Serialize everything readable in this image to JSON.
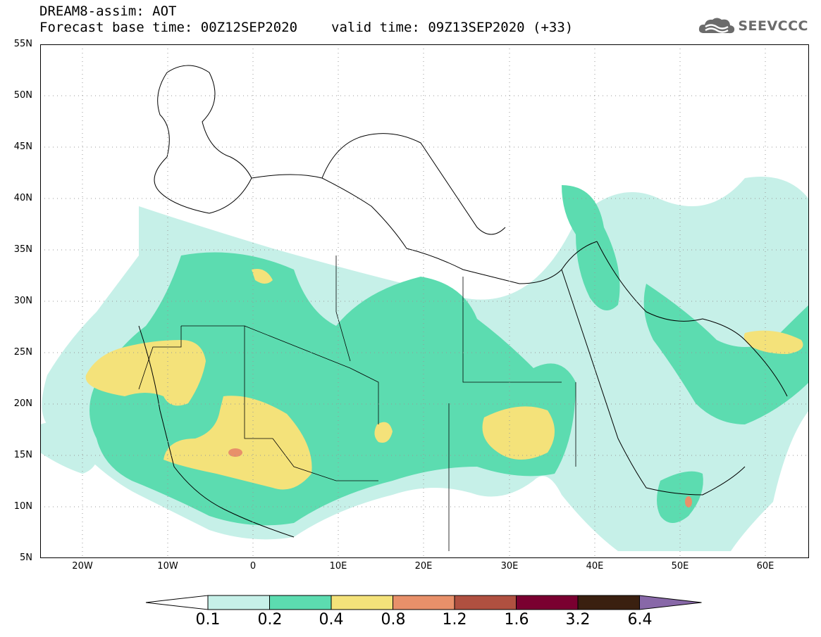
{
  "header": {
    "title": "DREAM8-assim: AOT",
    "base_time": "Forecast base time: 00Z12SEP2020",
    "valid_time": "valid time: 09Z13SEP2020 (+33)"
  },
  "logo": {
    "text": "SEEVCCC",
    "icon": "cloud-icon"
  },
  "map": {
    "variable": "AOT",
    "lat_labels": [
      "55N",
      "50N",
      "45N",
      "40N",
      "35N",
      "30N",
      "25N",
      "20N",
      "15N",
      "10N",
      "5N"
    ],
    "lon_labels": [
      "20W",
      "10W",
      "0",
      "10E",
      "20E",
      "30E",
      "40E",
      "50E",
      "60E"
    ],
    "lat_range": [
      5,
      55
    ],
    "lon_range": [
      -25,
      65
    ],
    "grid": "dotted"
  },
  "colorbar": {
    "labels": [
      "0.1",
      "0.2",
      "0.4",
      "0.8",
      "1.2",
      "1.6",
      "3.2",
      "6.4"
    ],
    "colors": [
      "#ffffff",
      "#c6f0e8",
      "#5cdcb0",
      "#f4e27a",
      "#e8906a",
      "#b05040",
      "#7a0030",
      "#3a2010",
      "#8868a8"
    ]
  }
}
